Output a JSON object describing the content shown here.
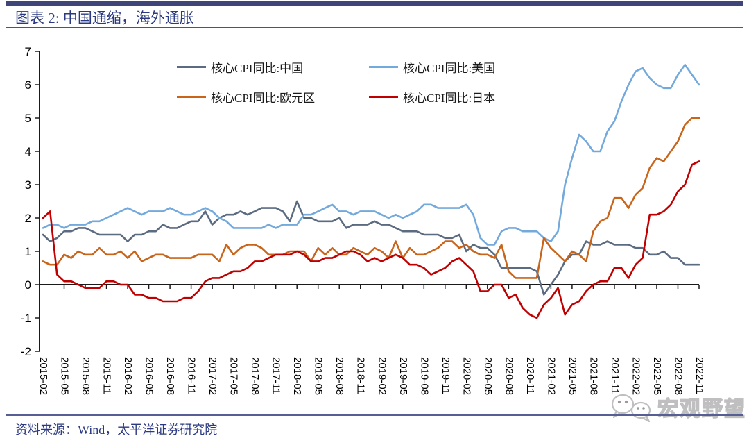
{
  "header": {
    "title": "图表 2:  中国通缩，海外通胀"
  },
  "footer": {
    "source": "资料来源：Wind，太平洋证券研究院"
  },
  "watermark": {
    "icon": "wechat-logo",
    "text": "宏观野望"
  },
  "colors": {
    "rule_navy": "#3F4479",
    "title_navy": "#2B3A80",
    "axis_black": "#1a1a1a",
    "china_line": "#5B6C82",
    "us_line": "#74A9DC",
    "eurozone_line": "#C8651B",
    "japan_line": "#C00000",
    "watermark_gray": "#b9b9b9"
  },
  "chart_data": {
    "type": "line",
    "title": "",
    "xlabel": "",
    "ylabel": "",
    "grid": false,
    "legend_position": "top-center-two-columns",
    "ylim": [
      -2,
      7
    ],
    "yticks": [
      -2,
      -1,
      0,
      1,
      2,
      3,
      4,
      5,
      6,
      7
    ],
    "x_tick_step": 3,
    "x": [
      "2015-02",
      "2015-03",
      "2015-04",
      "2015-05",
      "2015-06",
      "2015-07",
      "2015-08",
      "2015-09",
      "2015-10",
      "2015-11",
      "2015-12",
      "2016-01",
      "2016-02",
      "2016-03",
      "2016-04",
      "2016-05",
      "2016-06",
      "2016-07",
      "2016-08",
      "2016-09",
      "2016-10",
      "2016-11",
      "2016-12",
      "2017-01",
      "2017-02",
      "2017-03",
      "2017-04",
      "2017-05",
      "2017-06",
      "2017-07",
      "2017-08",
      "2017-09",
      "2017-10",
      "2017-11",
      "2017-12",
      "2018-01",
      "2018-02",
      "2018-03",
      "2018-04",
      "2018-05",
      "2018-06",
      "2018-07",
      "2018-08",
      "2018-09",
      "2018-10",
      "2018-11",
      "2018-12",
      "2019-01",
      "2019-02",
      "2019-03",
      "2019-04",
      "2019-05",
      "2019-06",
      "2019-07",
      "2019-08",
      "2019-09",
      "2019-10",
      "2019-11",
      "2019-12",
      "2020-01",
      "2020-02",
      "2020-03",
      "2020-04",
      "2020-05",
      "2020-06",
      "2020-07",
      "2020-08",
      "2020-09",
      "2020-10",
      "2020-11",
      "2020-12",
      "2021-01",
      "2021-02",
      "2021-03",
      "2021-04",
      "2021-05",
      "2021-06",
      "2021-07",
      "2021-08",
      "2021-09",
      "2021-10",
      "2021-11",
      "2021-12",
      "2022-01",
      "2022-02",
      "2022-03",
      "2022-04",
      "2022-05",
      "2022-06",
      "2022-07",
      "2022-08",
      "2022-09",
      "2022-10",
      "2022-11"
    ],
    "series": [
      {
        "name": "核心CPI同比:中国",
        "color": "#5B6C82",
        "values": [
          1.5,
          1.3,
          1.4,
          1.6,
          1.6,
          1.7,
          1.7,
          1.6,
          1.5,
          1.5,
          1.5,
          1.5,
          1.3,
          1.5,
          1.5,
          1.6,
          1.6,
          1.8,
          1.7,
          1.7,
          1.8,
          1.9,
          1.9,
          2.2,
          1.8,
          2.0,
          2.1,
          2.1,
          2.2,
          2.1,
          2.2,
          2.3,
          2.3,
          2.3,
          2.2,
          1.9,
          2.5,
          2.0,
          2.0,
          1.9,
          1.9,
          1.9,
          2.0,
          1.7,
          1.8,
          1.8,
          1.8,
          1.9,
          1.8,
          1.8,
          1.7,
          1.6,
          1.6,
          1.6,
          1.5,
          1.5,
          1.5,
          1.4,
          1.4,
          1.5,
          1.0,
          1.2,
          1.1,
          1.1,
          0.9,
          0.5,
          0.5,
          0.5,
          0.5,
          0.5,
          0.4,
          -0.3,
          0.0,
          0.3,
          0.7,
          0.9,
          0.9,
          1.3,
          1.2,
          1.2,
          1.3,
          1.2,
          1.2,
          1.2,
          1.1,
          1.1,
          0.9,
          0.9,
          1.0,
          0.8,
          0.8,
          0.6,
          0.6,
          0.6
        ]
      },
      {
        "name": "核心CPI同比:美国",
        "color": "#74A9DC",
        "values": [
          1.7,
          1.8,
          1.8,
          1.7,
          1.8,
          1.8,
          1.8,
          1.9,
          1.9,
          2.0,
          2.1,
          2.2,
          2.3,
          2.2,
          2.1,
          2.2,
          2.2,
          2.2,
          2.3,
          2.2,
          2.1,
          2.1,
          2.2,
          2.3,
          2.2,
          2.0,
          1.9,
          1.7,
          1.7,
          1.7,
          1.7,
          1.7,
          1.8,
          1.7,
          1.8,
          1.8,
          1.8,
          2.1,
          2.1,
          2.2,
          2.3,
          2.4,
          2.2,
          2.2,
          2.1,
          2.2,
          2.2,
          2.2,
          2.1,
          2.0,
          2.1,
          2.0,
          2.1,
          2.2,
          2.4,
          2.4,
          2.3,
          2.3,
          2.3,
          2.3,
          2.4,
          2.1,
          1.4,
          1.2,
          1.2,
          1.6,
          1.7,
          1.7,
          1.6,
          1.6,
          1.6,
          1.4,
          1.3,
          1.6,
          3.0,
          3.8,
          4.5,
          4.3,
          4.0,
          4.0,
          4.6,
          4.9,
          5.5,
          6.0,
          6.4,
          6.5,
          6.2,
          6.0,
          5.9,
          5.9,
          6.3,
          6.6,
          6.3,
          6.0
        ]
      },
      {
        "name": "核心CPI同比:欧元区",
        "color": "#C8651B",
        "values": [
          0.7,
          0.6,
          0.6,
          0.9,
          0.8,
          1.0,
          0.9,
          0.9,
          1.1,
          0.9,
          0.9,
          1.0,
          0.8,
          1.0,
          0.7,
          0.8,
          0.9,
          0.9,
          0.8,
          0.8,
          0.8,
          0.8,
          0.9,
          0.9,
          0.9,
          0.7,
          1.2,
          0.9,
          1.1,
          1.2,
          1.2,
          1.1,
          0.9,
          0.9,
          0.9,
          1.0,
          1.0,
          1.0,
          0.7,
          1.1,
          0.9,
          1.1,
          0.9,
          0.9,
          1.1,
          1.0,
          0.9,
          1.1,
          1.0,
          0.8,
          1.3,
          0.8,
          1.1,
          0.9,
          0.9,
          1.0,
          1.1,
          1.3,
          1.3,
          1.1,
          1.2,
          1.0,
          0.9,
          0.9,
          0.8,
          1.2,
          0.4,
          0.2,
          0.2,
          0.2,
          0.2,
          1.4,
          1.1,
          0.9,
          0.7,
          1.0,
          0.9,
          0.7,
          1.6,
          1.9,
          2.0,
          2.6,
          2.6,
          2.3,
          2.7,
          2.9,
          3.5,
          3.8,
          3.7,
          4.0,
          4.3,
          4.8,
          5.0,
          5.0
        ]
      },
      {
        "name": "核心CPI同比:日本",
        "color": "#C00000",
        "values": [
          2.0,
          2.2,
          0.3,
          0.1,
          0.1,
          0.0,
          -0.1,
          -0.1,
          -0.1,
          0.1,
          0.1,
          0.0,
          0.0,
          -0.3,
          -0.3,
          -0.4,
          -0.4,
          -0.5,
          -0.5,
          -0.5,
          -0.4,
          -0.4,
          -0.2,
          0.1,
          0.2,
          0.2,
          0.3,
          0.4,
          0.4,
          0.5,
          0.7,
          0.7,
          0.8,
          0.9,
          0.9,
          0.9,
          1.0,
          0.9,
          0.7,
          0.7,
          0.8,
          0.8,
          0.9,
          1.0,
          1.0,
          0.9,
          0.7,
          0.8,
          0.7,
          0.8,
          0.9,
          0.8,
          0.6,
          0.6,
          0.5,
          0.3,
          0.4,
          0.5,
          0.7,
          0.8,
          0.6,
          0.4,
          -0.2,
          -0.2,
          0.0,
          0.0,
          -0.4,
          -0.3,
          -0.7,
          -0.9,
          -1.0,
          -0.6,
          -0.4,
          -0.1,
          -0.9,
          -0.6,
          -0.5,
          -0.2,
          0.0,
          0.1,
          0.1,
          0.5,
          0.5,
          0.2,
          0.6,
          0.8,
          2.1,
          2.1,
          2.2,
          2.4,
          2.8,
          3.0,
          3.6,
          3.7
        ]
      }
    ]
  }
}
